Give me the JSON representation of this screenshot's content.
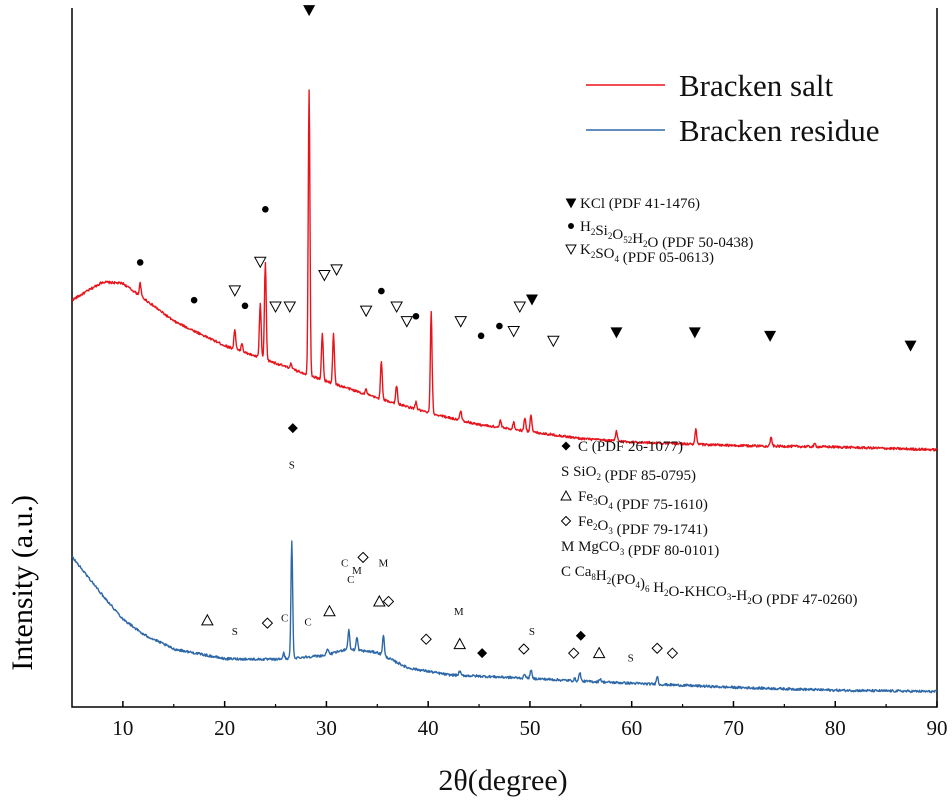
{
  "chart_data": {
    "type": "line",
    "title": "",
    "xlabel": "2θ(degree)",
    "ylabel": "Intensity (a.u.)",
    "xlim": [
      5,
      90
    ],
    "ylim": [
      0,
      100
    ],
    "x_ticks": [
      "10",
      "20",
      "30",
      "40",
      "50",
      "60",
      "70",
      "80",
      "90"
    ],
    "y_ticks": [],
    "grid": false,
    "legend_position": "top-right",
    "colors": {
      "salt": "#e8141c",
      "residue": "#2e68a8",
      "text": "#111111"
    },
    "series": [
      {
        "name": "Bracken salt",
        "baseline": [
          [
            5,
            58.2
          ],
          [
            8,
            60.8
          ],
          [
            10,
            60.6
          ],
          [
            12,
            58.5
          ],
          [
            15,
            55.2
          ],
          [
            20,
            51.7
          ],
          [
            25,
            49.2
          ],
          [
            30,
            46.6
          ],
          [
            35,
            44.2
          ],
          [
            40,
            42.1
          ],
          [
            45,
            40.4
          ],
          [
            50,
            39.4
          ],
          [
            55,
            38.4
          ],
          [
            60,
            37.9
          ],
          [
            70,
            37.4
          ],
          [
            80,
            37.2
          ],
          [
            90,
            36.8
          ]
        ],
        "peaks": [
          [
            11.7,
            1.8
          ],
          [
            21.0,
            2.9
          ],
          [
            21.7,
            1.2
          ],
          [
            23.5,
            7.8
          ],
          [
            24.0,
            13.7
          ],
          [
            26.5,
            0.7
          ],
          [
            28.3,
            40.8
          ],
          [
            29.6,
            6.5
          ],
          [
            30.7,
            7.2
          ],
          [
            33.9,
            0.7
          ],
          [
            35.4,
            5.5
          ],
          [
            36.9,
            2.6
          ],
          [
            38.8,
            1.0
          ],
          [
            40.3,
            14.4
          ],
          [
            43.2,
            1.4
          ],
          [
            47.1,
            1.0
          ],
          [
            48.4,
            1.0
          ],
          [
            49.5,
            1.8
          ],
          [
            50.1,
            2.5
          ],
          [
            58.5,
            1.4
          ],
          [
            66.3,
            2.1
          ],
          [
            73.7,
            1.3
          ],
          [
            78.0,
            0.4
          ]
        ]
      },
      {
        "name": "Bracken residue",
        "baseline": [
          [
            5,
            21.5
          ],
          [
            8,
            16.0
          ],
          [
            10,
            12.6
          ],
          [
            12,
            10.4
          ],
          [
            15,
            8.3
          ],
          [
            20,
            6.9
          ],
          [
            25,
            6.8
          ],
          [
            30,
            7.4
          ],
          [
            32,
            8.3
          ],
          [
            35,
            7.8
          ],
          [
            38,
            5.6
          ],
          [
            42,
            4.6
          ],
          [
            50,
            4.1
          ],
          [
            55,
            3.7
          ],
          [
            60,
            3.4
          ],
          [
            70,
            2.8
          ],
          [
            80,
            2.4
          ],
          [
            90,
            2.2
          ]
        ],
        "peaks": [
          [
            25.8,
            0.8
          ],
          [
            26.6,
            16.6
          ],
          [
            30.1,
            1.0
          ],
          [
            32.2,
            2.8
          ],
          [
            33.0,
            1.8
          ],
          [
            35.6,
            3.0
          ],
          [
            43.1,
            0.6
          ],
          [
            49.5,
            0.6
          ],
          [
            50.1,
            1.2
          ],
          [
            54.4,
            0.3
          ],
          [
            54.9,
            1.3
          ],
          [
            56.9,
            0.5
          ],
          [
            62.5,
            1.2
          ]
        ]
      }
    ],
    "salt_markers": [
      {
        "sym": "kcl",
        "x": 28.3,
        "y": 99.7
      },
      {
        "sym": "dot",
        "x": 11.7,
        "y": 63.6
      },
      {
        "sym": "dot",
        "x": 17.0,
        "y": 58.2
      },
      {
        "sym": "tri_down",
        "x": 21.0,
        "y": 59.6
      },
      {
        "sym": "dot",
        "x": 22.0,
        "y": 57.4
      },
      {
        "sym": "tri_down",
        "x": 23.5,
        "y": 63.7
      },
      {
        "sym": "dot",
        "x": 24.0,
        "y": 71.2
      },
      {
        "sym": "tri_down",
        "x": 25.0,
        "y": 57.3
      },
      {
        "sym": "tri_down",
        "x": 26.4,
        "y": 57.3
      },
      {
        "sym": "tri_down",
        "x": 29.8,
        "y": 61.8
      },
      {
        "sym": "tri_down",
        "x": 31.0,
        "y": 62.6
      },
      {
        "sym": "tri_down",
        "x": 33.9,
        "y": 56.7
      },
      {
        "sym": "dot",
        "x": 35.4,
        "y": 59.5
      },
      {
        "sym": "tri_down",
        "x": 36.9,
        "y": 57.3
      },
      {
        "sym": "tri_down",
        "x": 37.9,
        "y": 55.2
      },
      {
        "sym": "dot",
        "x": 38.8,
        "y": 55.9
      },
      {
        "sym": "tri_down",
        "x": 43.2,
        "y": 55.2
      },
      {
        "sym": "dot",
        "x": 45.2,
        "y": 53.1
      },
      {
        "sym": "dot",
        "x": 47.0,
        "y": 54.5
      },
      {
        "sym": "tri_down",
        "x": 48.4,
        "y": 53.8
      },
      {
        "sym": "tri_down",
        "x": 49.0,
        "y": 57.3
      },
      {
        "sym": "kcl",
        "x": 50.2,
        "y": 58.3
      },
      {
        "sym": "tri_down",
        "x": 52.3,
        "y": 52.4
      },
      {
        "sym": "kcl",
        "x": 58.5,
        "y": 53.6
      },
      {
        "sym": "kcl",
        "x": 66.2,
        "y": 53.6
      },
      {
        "sym": "kcl",
        "x": 73.6,
        "y": 53.1
      },
      {
        "sym": "kcl",
        "x": 87.4,
        "y": 51.7
      }
    ],
    "residue_markers": [
      {
        "sym": "diamond_filled",
        "x": 26.7,
        "y": 39.9
      },
      {
        "sym": "text",
        "label": "S",
        "x": 26.6,
        "y": 34.7
      },
      {
        "sym": "tri_up",
        "x": 18.3,
        "y": 12.4
      },
      {
        "sym": "text",
        "label": "S",
        "x": 21.0,
        "y": 10.9
      },
      {
        "sym": "diamond_open",
        "x": 24.2,
        "y": 12.0
      },
      {
        "sym": "text",
        "label": "C",
        "x": 25.9,
        "y": 12.8
      },
      {
        "sym": "text",
        "label": "C",
        "x": 28.2,
        "y": 12.2
      },
      {
        "sym": "tri_up",
        "x": 30.3,
        "y": 13.7
      },
      {
        "sym": "text",
        "label": "C",
        "x": 31.8,
        "y": 20.7
      },
      {
        "sym": "text",
        "label": "C",
        "x": 32.4,
        "y": 18.3
      },
      {
        "sym": "text",
        "label": "M",
        "x": 33.0,
        "y": 19.6
      },
      {
        "sym": "diamond_open",
        "x": 33.6,
        "y": 21.4
      },
      {
        "sym": "text",
        "label": "M",
        "x": 35.6,
        "y": 20.7
      },
      {
        "sym": "tri_up",
        "x": 35.2,
        "y": 15.1
      },
      {
        "sym": "diamond_open",
        "x": 36.1,
        "y": 15.1
      },
      {
        "sym": "diamond_open",
        "x": 39.8,
        "y": 9.7
      },
      {
        "sym": "text",
        "label": "M",
        "x": 43.0,
        "y": 13.7
      },
      {
        "sym": "tri_up",
        "x": 43.1,
        "y": 9.0
      },
      {
        "sym": "diamond_filled",
        "x": 45.3,
        "y": 7.7
      },
      {
        "sym": "diamond_open",
        "x": 49.4,
        "y": 8.3
      },
      {
        "sym": "text",
        "label": "S",
        "x": 50.2,
        "y": 10.9
      },
      {
        "sym": "diamond_open",
        "x": 54.3,
        "y": 7.7
      },
      {
        "sym": "diamond_filled",
        "x": 55.0,
        "y": 10.2
      },
      {
        "sym": "tri_up",
        "x": 56.8,
        "y": 7.7
      },
      {
        "sym": "text",
        "label": "S",
        "x": 59.9,
        "y": 7.1
      },
      {
        "sym": "diamond_open",
        "x": 62.5,
        "y": 8.4
      },
      {
        "sym": "diamond_open",
        "x": 64.0,
        "y": 7.7
      }
    ],
    "salt_ref_legend": [
      {
        "sym": "kcl",
        "text": "KCl (PDF 41-1476)"
      },
      {
        "sym": "dot",
        "text": "H2Si2O52H2O (PDF 50-0438)"
      },
      {
        "sym": "tri_down",
        "text": "K2SO4 (PDF 05-0613)"
      }
    ],
    "residue_ref_legend": [
      {
        "sym": "diamond_filled",
        "text": "C (PDF 26-1077)"
      },
      {
        "sym": "none",
        "text": "S SiO2 (PDF 85-0795)"
      },
      {
        "sym": "tri_up",
        "text": "Fe3O4 (PDF 75-1610)"
      },
      {
        "sym": "diamond_open",
        "text": "Fe2O3 (PDF 79-1741)"
      },
      {
        "sym": "none",
        "text": "M MgCO3 (PDF 80-0101)"
      },
      {
        "sym": "none",
        "text": "C Ca8H2(PO4)6 H2O-KHCO3-H2O (PDF 47-0260)"
      }
    ]
  }
}
